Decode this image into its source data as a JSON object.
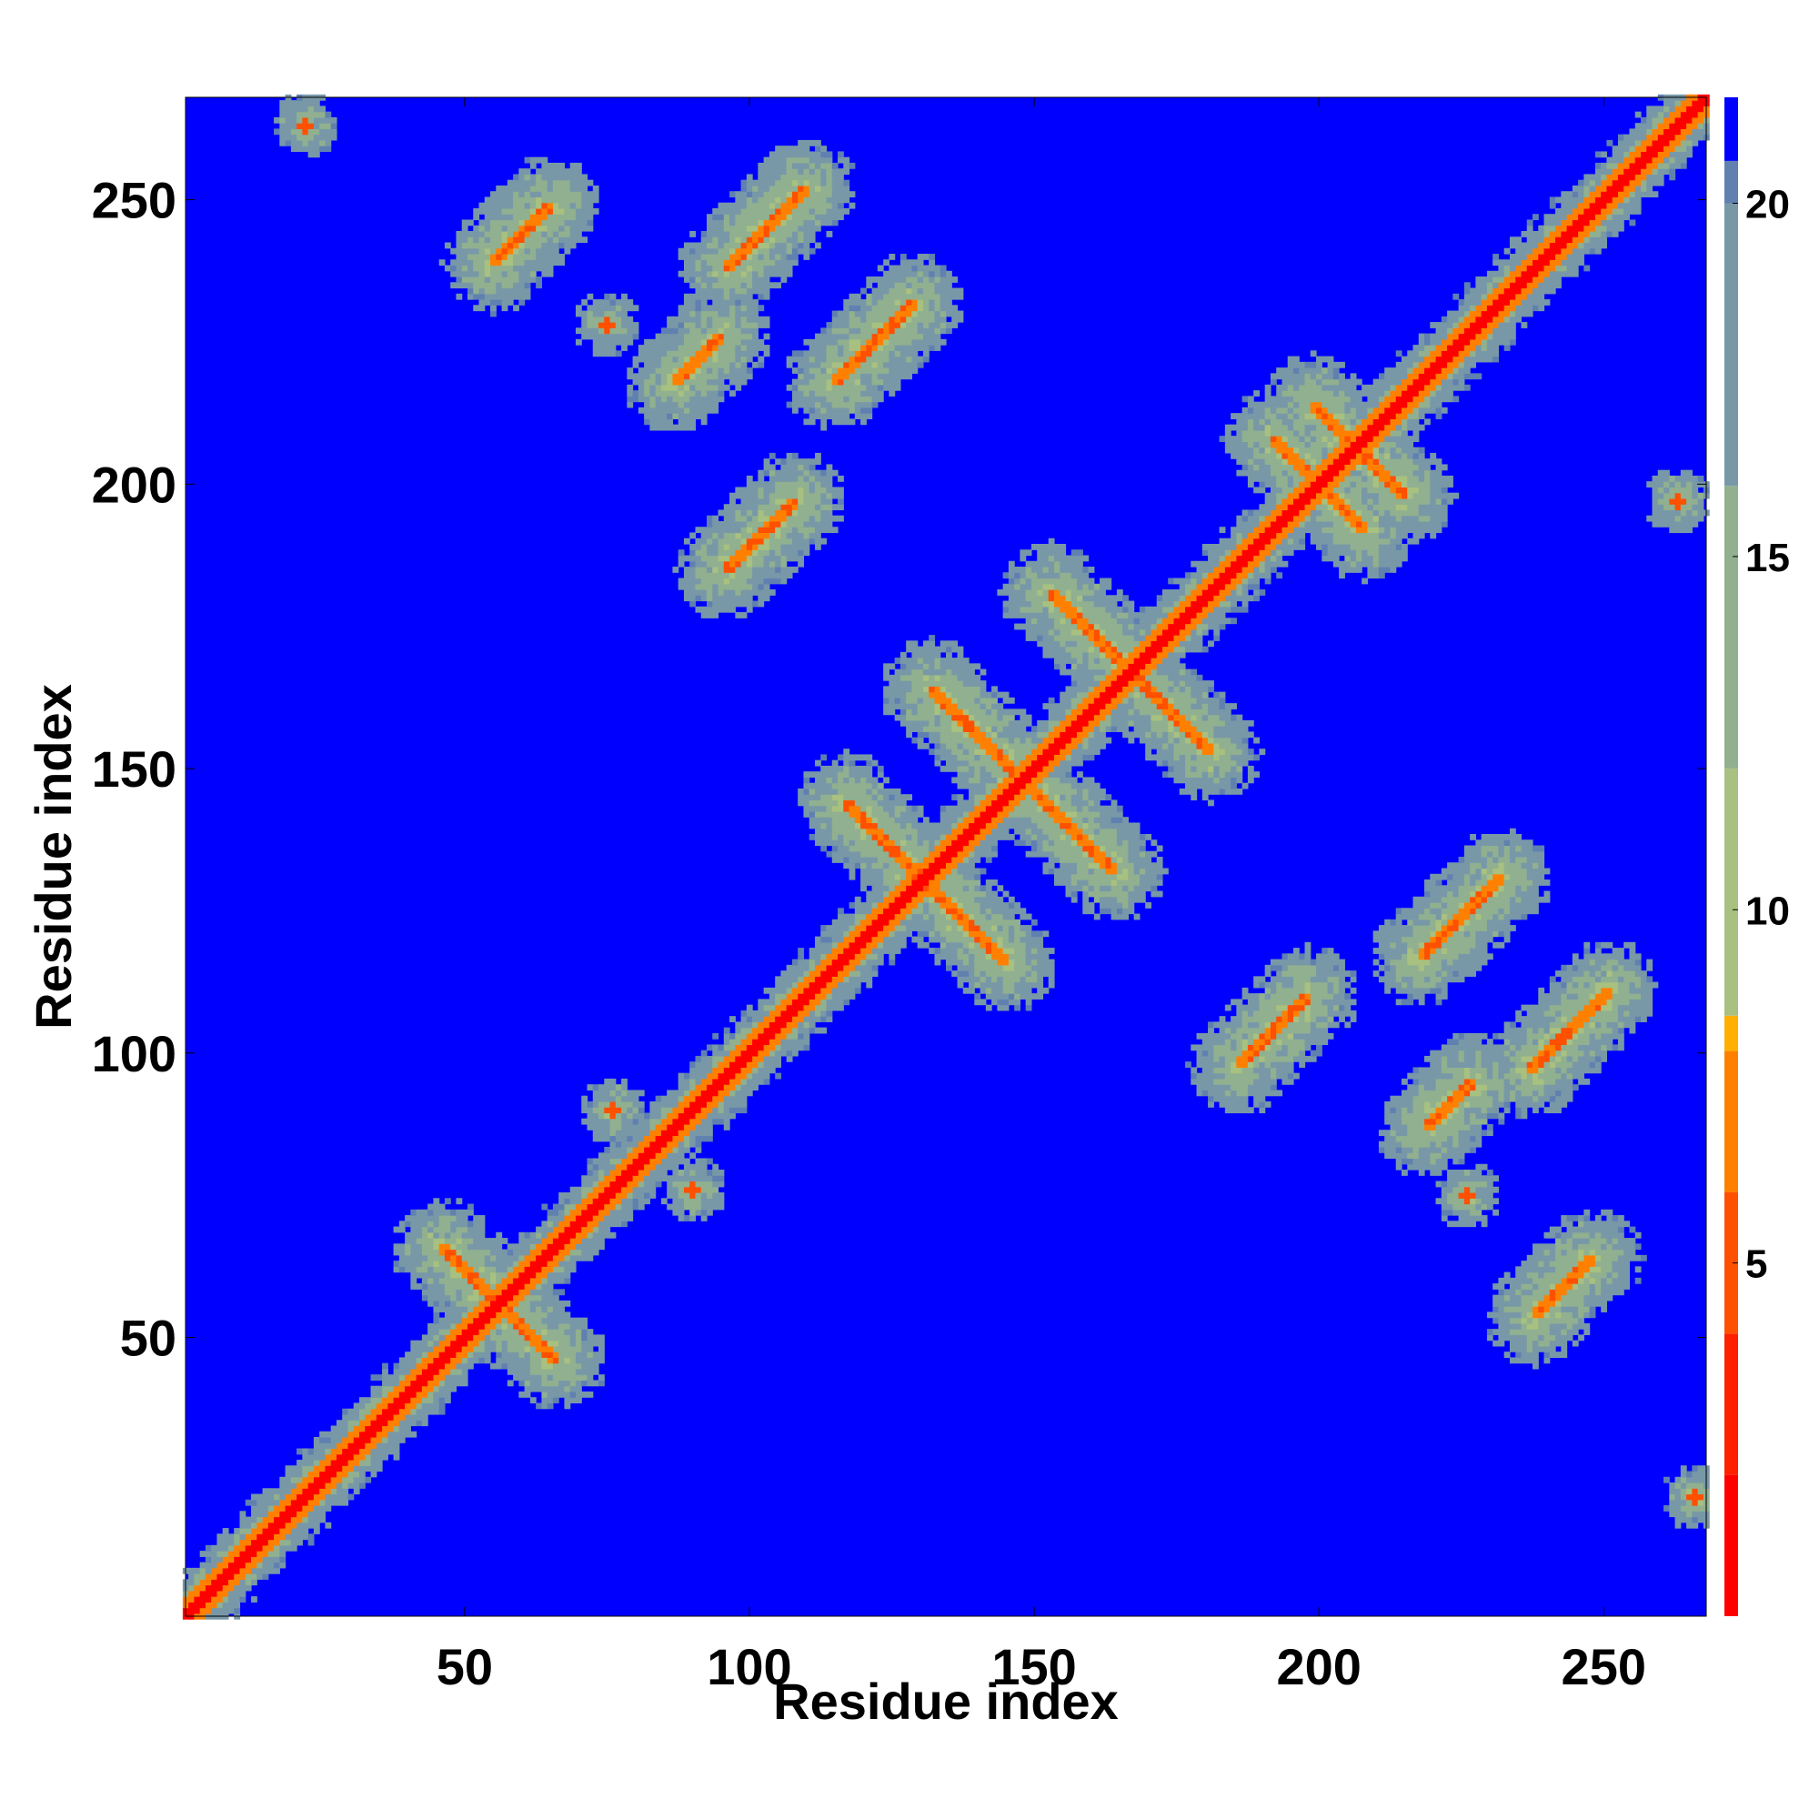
{
  "chart_data": {
    "type": "heatmap",
    "title": "",
    "xlabel": "Residue index",
    "ylabel": "Residue index",
    "n_residues": 268,
    "xlim": [
      1,
      268
    ],
    "ylim": [
      1,
      268
    ],
    "x_ticks": [
      50,
      100,
      150,
      200,
      250
    ],
    "y_ticks": [
      50,
      100,
      150,
      200,
      250
    ],
    "colorbar": {
      "range": [
        0,
        21.5
      ],
      "ticks": [
        5,
        10,
        15,
        20
      ],
      "stops": [
        {
          "value": 0,
          "color": "#ff0000"
        },
        {
          "value": 2,
          "color": "#ff2000"
        },
        {
          "value": 4,
          "color": "#ff5000"
        },
        {
          "value": 6,
          "color": "#ff8000"
        },
        {
          "value": 8,
          "color": "#ffb000"
        },
        {
          "value": 8.5,
          "color": "#a8c080"
        },
        {
          "value": 12,
          "color": "#90b090"
        },
        {
          "value": 16,
          "color": "#7898a8"
        },
        {
          "value": 20,
          "color": "#6080b0"
        },
        {
          "value": 20.6,
          "color": "#0000ff"
        }
      ],
      "background_color": "#0000ff"
    },
    "features": [
      {
        "kind": "diagonal",
        "from": 1,
        "to": 268
      },
      {
        "kind": "anti",
        "center": [
          56,
          56
        ],
        "half_length": 10
      },
      {
        "kind": "anti",
        "center": [
          131,
          130
        ],
        "half_length": 14
      },
      {
        "kind": "anti",
        "center": [
          148,
          148
        ],
        "half_length": 16
      },
      {
        "kind": "anti",
        "center": [
          167,
          167
        ],
        "half_length": 14
      },
      {
        "kind": "anti",
        "center": [
          200,
          200
        ],
        "half_length": 8
      },
      {
        "kind": "anti",
        "center": [
          207,
          206
        ],
        "half_length": 8
      },
      {
        "kind": "parallel",
        "center": [
          60,
          244
        ],
        "half_length": 5
      },
      {
        "kind": "parallel",
        "center": [
          103,
          245
        ],
        "half_length": 7
      },
      {
        "kind": "parallel",
        "center": [
          122,
          225
        ],
        "half_length": 7
      },
      {
        "kind": "parallel",
        "center": [
          91,
          222
        ],
        "half_length": 4
      },
      {
        "kind": "parallel",
        "center": [
          102,
          191
        ],
        "half_length": 6
      },
      {
        "kind": "parallel",
        "center": [
          192,
          104
        ],
        "half_length": 6
      },
      {
        "kind": "parallel",
        "center": [
          225,
          124
        ],
        "half_length": 7
      },
      {
        "kind": "parallel",
        "center": [
          244,
          104
        ],
        "half_length": 7
      },
      {
        "kind": "parallel",
        "center": [
          243,
          59
        ],
        "half_length": 5
      },
      {
        "kind": "parallel",
        "center": [
          223,
          91
        ],
        "half_length": 4
      },
      {
        "kind": "contact",
        "center": [
          22,
          263
        ]
      },
      {
        "kind": "contact",
        "center": [
          75,
          228
        ]
      },
      {
        "kind": "contact",
        "center": [
          90,
          76
        ]
      },
      {
        "kind": "contact",
        "center": [
          76,
          90
        ]
      },
      {
        "kind": "contact",
        "center": [
          266,
          22
        ]
      },
      {
        "kind": "contact",
        "center": [
          263,
          197
        ]
      },
      {
        "kind": "contact",
        "center": [
          226,
          75
        ]
      }
    ]
  }
}
